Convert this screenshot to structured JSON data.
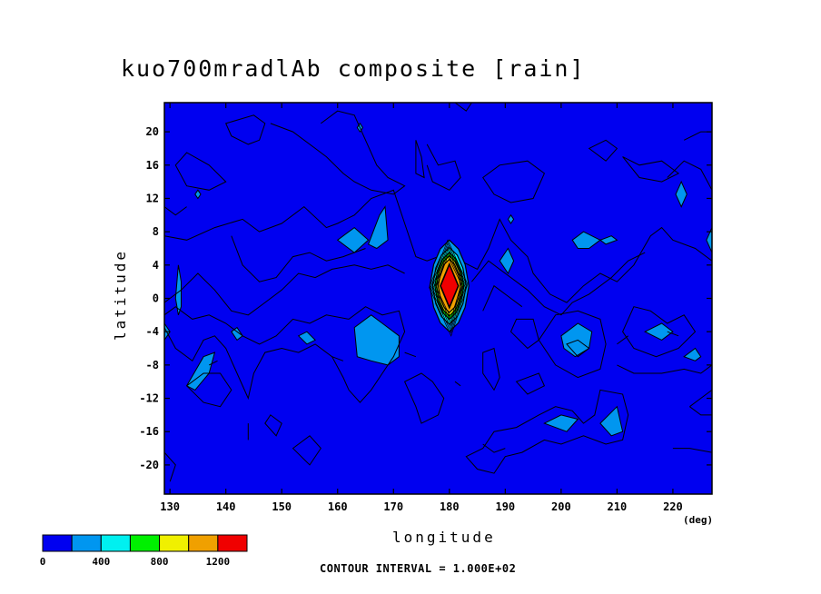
{
  "chart_data": {
    "type": "contour",
    "title": "kuo700mradlAb composite [rain]",
    "xlabel": "longitude",
    "ylabel": "latitude",
    "x_unit": "(deg)",
    "xlim": [
      129,
      227
    ],
    "ylim": [
      -23.5,
      23.5
    ],
    "x_ticks": [
      130,
      140,
      150,
      160,
      170,
      180,
      190,
      200,
      210,
      220
    ],
    "y_ticks": [
      20,
      16,
      12,
      8,
      4,
      0,
      -4,
      -8,
      -12,
      -16,
      -20
    ],
    "contour_interval_text": "CONTOUR INTERVAL = 1.000E+02",
    "contour_interval": 100,
    "colorbar": {
      "colors": [
        "#0000f0",
        "#0096f0",
        "#00f0f0",
        "#00f000",
        "#f0f000",
        "#f0a000",
        "#f00000"
      ],
      "labels": [
        "0",
        "400",
        "800",
        "1200"
      ],
      "label_positions": [
        0,
        2,
        4,
        6
      ]
    },
    "features": [
      {
        "kind": "peak",
        "lon": 180,
        "lat": 1.5,
        "max_approx": 1300
      },
      {
        "kind": "light-blue",
        "lon": 132,
        "lat": 1
      },
      {
        "kind": "light-blue",
        "lon": 136,
        "lat": -8
      },
      {
        "kind": "light-blue",
        "lon": 163,
        "lat": 7
      },
      {
        "kind": "light-blue",
        "lon": 167.5,
        "lat": 9
      },
      {
        "kind": "light-blue",
        "lon": 167,
        "lat": -5
      },
      {
        "kind": "light-blue",
        "lon": 154.5,
        "lat": -4.5
      },
      {
        "kind": "light-blue",
        "lon": 202.5,
        "lat": -4.5
      },
      {
        "kind": "light-blue",
        "lon": 205.5,
        "lat": 7.5
      },
      {
        "kind": "light-blue",
        "lon": 218,
        "lat": -4
      },
      {
        "kind": "light-blue",
        "lon": 200,
        "lat": -15
      },
      {
        "kind": "light-blue",
        "lon": 210,
        "lat": -15
      },
      {
        "kind": "light-blue",
        "lon": 190.5,
        "lat": 4.5
      },
      {
        "kind": "light-blue",
        "lon": 221.5,
        "lat": 12.5
      }
    ]
  }
}
